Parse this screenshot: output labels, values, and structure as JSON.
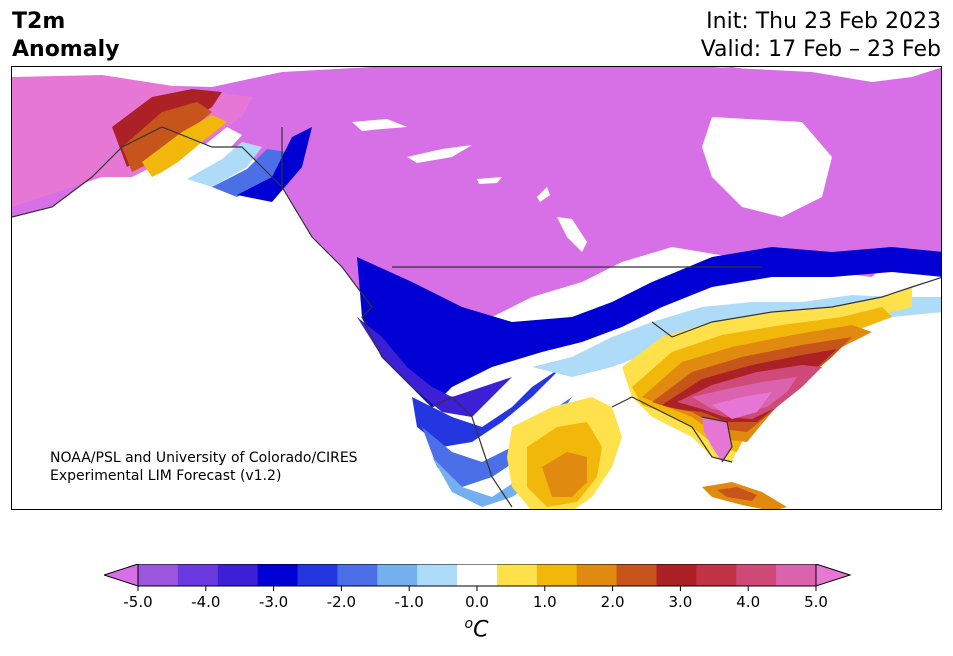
{
  "title": {
    "line1": "T2m",
    "line2": "Anomaly"
  },
  "init": {
    "line1": "Init: Thu 23 Feb 2023",
    "line2": "Valid: 17 Feb – 23 Feb"
  },
  "credit": {
    "line1": "NOAA/PSL and University of Colorado/CIRES",
    "line2": "Experimental LIM Forecast (v1.2)"
  },
  "colorbar": {
    "colors": [
      "#d770e6",
      "#9c55dd",
      "#6b3adf",
      "#3d1fd6",
      "#0000d4",
      "#2436e0",
      "#4a6fe6",
      "#74aff0",
      "#aedcf8",
      "#ffffff",
      "#ffe24b",
      "#f2b70b",
      "#e08a10",
      "#c6541b",
      "#ac2125",
      "#c13245",
      "#cf4a78",
      "#db63ae",
      "#e777d4"
    ],
    "ticks": [
      "-5.0",
      "-4.0",
      "-3.0",
      "-2.0",
      "-1.0",
      "0.0",
      "1.0",
      "2.0",
      "3.0",
      "4.0",
      "5.0"
    ],
    "units_base": "o",
    "units_main": "C"
  }
}
